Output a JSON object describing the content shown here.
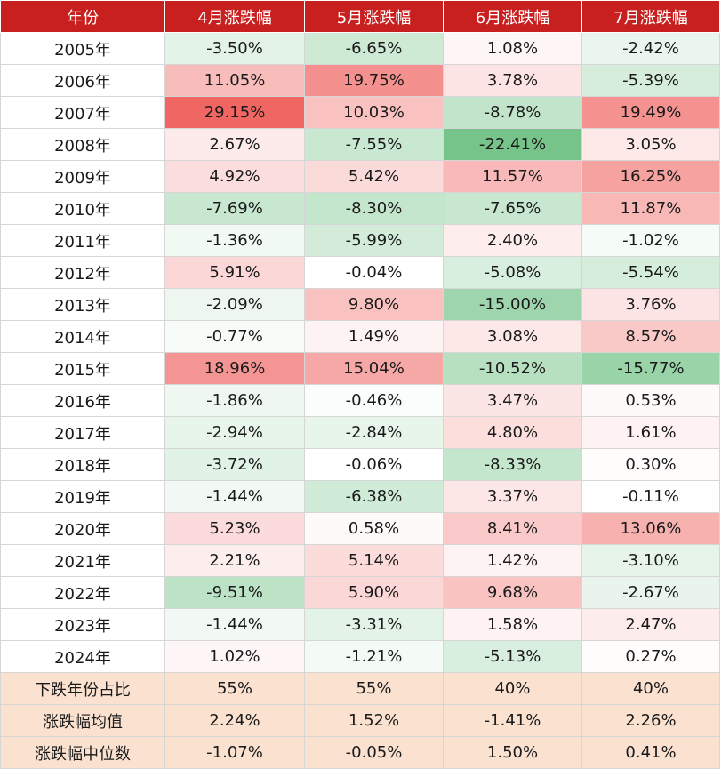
{
  "chart_data": {
    "type": "table",
    "columns": [
      "年份",
      "4月涨跌幅",
      "5月涨跌幅",
      "6月涨跌幅",
      "7月涨跌幅"
    ],
    "rows": [
      {
        "label": "2005年",
        "values": [
          "-3.50%",
          "-6.65%",
          "1.08%",
          "-2.42%"
        ]
      },
      {
        "label": "2006年",
        "values": [
          "11.05%",
          "19.75%",
          "3.78%",
          "-5.39%"
        ]
      },
      {
        "label": "2007年",
        "values": [
          "29.15%",
          "10.03%",
          "-8.78%",
          "19.49%"
        ]
      },
      {
        "label": "2008年",
        "values": [
          "2.67%",
          "-7.55%",
          "-22.41%",
          "3.05%"
        ]
      },
      {
        "label": "2009年",
        "values": [
          "4.92%",
          "5.42%",
          "11.57%",
          "16.25%"
        ]
      },
      {
        "label": "2010年",
        "values": [
          "-7.69%",
          "-8.30%",
          "-7.65%",
          "11.87%"
        ]
      },
      {
        "label": "2011年",
        "values": [
          "-1.36%",
          "-5.99%",
          "2.40%",
          "-1.02%"
        ]
      },
      {
        "label": "2012年",
        "values": [
          "5.91%",
          "-0.04%",
          "-5.08%",
          "-5.54%"
        ]
      },
      {
        "label": "2013年",
        "values": [
          "-2.09%",
          "9.80%",
          "-15.00%",
          "3.76%"
        ]
      },
      {
        "label": "2014年",
        "values": [
          "-0.77%",
          "1.49%",
          "3.08%",
          "8.57%"
        ]
      },
      {
        "label": "2015年",
        "values": [
          "18.96%",
          "15.04%",
          "-10.52%",
          "-15.77%"
        ]
      },
      {
        "label": "2016年",
        "values": [
          "-1.86%",
          "-0.46%",
          "3.47%",
          "0.53%"
        ]
      },
      {
        "label": "2017年",
        "values": [
          "-2.94%",
          "-2.84%",
          "4.80%",
          "1.61%"
        ]
      },
      {
        "label": "2018年",
        "values": [
          "-3.72%",
          "-0.06%",
          "-8.33%",
          "0.30%"
        ]
      },
      {
        "label": "2019年",
        "values": [
          "-1.44%",
          "-6.38%",
          "3.37%",
          "-0.11%"
        ]
      },
      {
        "label": "2020年",
        "values": [
          "5.23%",
          "0.58%",
          "8.41%",
          "13.06%"
        ]
      },
      {
        "label": "2021年",
        "values": [
          "2.21%",
          "5.14%",
          "1.42%",
          "-3.10%"
        ]
      },
      {
        "label": "2022年",
        "values": [
          "-9.51%",
          "5.90%",
          "9.68%",
          "-2.67%"
        ]
      },
      {
        "label": "2023年",
        "values": [
          "-1.44%",
          "-3.31%",
          "1.58%",
          "2.47%"
        ]
      },
      {
        "label": "2024年",
        "values": [
          "1.02%",
          "-1.21%",
          "-5.13%",
          "0.27%"
        ]
      }
    ],
    "summary_rows": [
      {
        "label": "下跌年份占比",
        "values": [
          "55%",
          "55%",
          "40%",
          "40%"
        ]
      },
      {
        "label": "涨跌幅均值",
        "values": [
          "2.24%",
          "1.52%",
          "-1.41%",
          "2.26%"
        ]
      },
      {
        "label": "涨跌幅中位数",
        "values": [
          "-1.07%",
          "-0.05%",
          "1.50%",
          "0.41%"
        ]
      }
    ]
  },
  "colors": {
    "header_bg": "#c8201e",
    "header_text": "#ffffff",
    "summary_bg": "#fbe1d0",
    "positive_max": "#ef6663",
    "negative_max": "#76c48a",
    "neutral": "#ffffff"
  }
}
